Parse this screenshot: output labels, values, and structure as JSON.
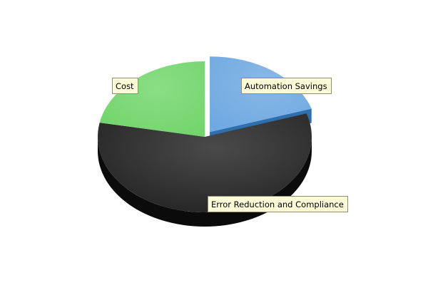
{
  "chart_data": {
    "type": "pie",
    "style": "3d",
    "legend": "none",
    "slices": [
      {
        "label": "Automation Savings",
        "value": 20,
        "color": "#6fa9e1",
        "side_color": "#2f6fb0",
        "exploded": true
      },
      {
        "label": "Error Reduction and Compliance",
        "value": 58,
        "color": "#222222",
        "side_color": "#0b0b0b",
        "exploded": false
      },
      {
        "label": "Cost",
        "value": 22,
        "color": "#71d56a",
        "side_color": "#3f9a3a",
        "exploded": false
      }
    ]
  }
}
